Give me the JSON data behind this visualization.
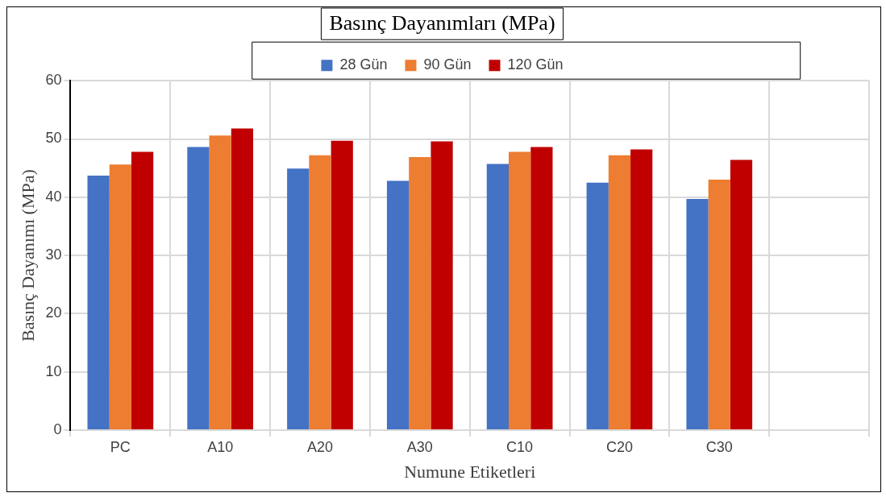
{
  "chart_data": {
    "type": "bar",
    "title": "Basınç Dayanımları (MPa)",
    "xlabel": "Numune Etiketleri",
    "ylabel": "Basınç Dayanımı (MPa)",
    "categories": [
      "PC",
      "A10",
      "A20",
      "A30",
      "C10",
      "C20",
      "C30",
      null
    ],
    "series": [
      {
        "name": "28 Gün",
        "color": "#4472c4",
        "values": [
          43.7,
          48.6,
          44.9,
          42.8,
          45.7,
          42.5,
          39.7,
          null
        ]
      },
      {
        "name": "90 Gün",
        "color": "#ed7d31",
        "values": [
          45.6,
          50.6,
          47.2,
          46.9,
          47.8,
          47.2,
          43.0,
          null
        ]
      },
      {
        "name": "120 Gün",
        "color": "#c00000",
        "values": [
          47.8,
          51.8,
          49.7,
          49.6,
          48.6,
          48.2,
          46.4,
          null
        ]
      }
    ],
    "ylim": [
      0,
      60
    ],
    "yticks": [
      0,
      10,
      20,
      30,
      40,
      50,
      60
    ],
    "grid": true,
    "legend": "top"
  }
}
